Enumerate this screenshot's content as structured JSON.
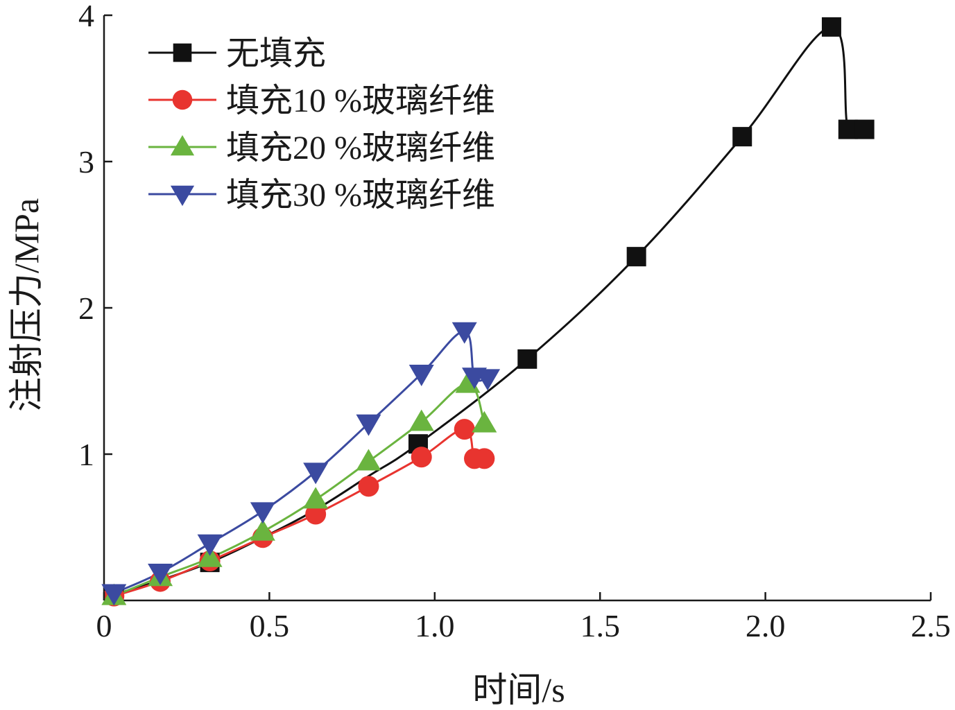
{
  "chart_data": {
    "type": "line",
    "title": "",
    "xlabel": "时间/s",
    "ylabel": "注射压力/MPa",
    "xlim": [
      0,
      2.5
    ],
    "ylim": [
      0,
      4
    ],
    "x_ticks": [
      {
        "value": 0,
        "label": "0"
      },
      {
        "value": 0.5,
        "label": "0.5"
      },
      {
        "value": 1.0,
        "label": "1.0"
      },
      {
        "value": 1.5,
        "label": "1.5"
      },
      {
        "value": 2.0,
        "label": "2.0"
      },
      {
        "value": 2.5,
        "label": "2.5"
      }
    ],
    "y_ticks": [
      {
        "value": 1,
        "label": "1"
      },
      {
        "value": 2,
        "label": "2"
      },
      {
        "value": 3,
        "label": "3"
      },
      {
        "value": 4,
        "label": "4"
      }
    ],
    "grid": false,
    "legend_position": "top-left",
    "series": [
      {
        "name": "无填充",
        "color": "#111111",
        "marker": "square",
        "x": [
          0.03,
          0.16,
          0.32,
          0.48,
          0.64,
          0.8,
          0.95,
          1.28,
          1.61,
          1.93,
          2.2,
          2.25,
          2.3
        ],
        "y": [
          0.04,
          0.13,
          0.26,
          0.43,
          0.62,
          0.85,
          1.07,
          1.65,
          2.35,
          3.17,
          3.92,
          3.22,
          3.22
        ],
        "visible_markers": [
          0,
          2,
          6,
          7,
          8,
          9,
          10,
          11,
          12
        ]
      },
      {
        "name": "填充10 %玻璃纤维",
        "color": "#e8342f",
        "marker": "circle",
        "x": [
          0.03,
          0.17,
          0.32,
          0.48,
          0.64,
          0.8,
          0.96,
          1.09,
          1.12,
          1.15
        ],
        "y": [
          0.03,
          0.13,
          0.27,
          0.43,
          0.59,
          0.78,
          0.98,
          1.17,
          0.97,
          0.97
        ]
      },
      {
        "name": "填充20 %玻璃纤维",
        "color": "#6ab43f",
        "marker": "triangle-up",
        "x": [
          0.03,
          0.17,
          0.32,
          0.48,
          0.64,
          0.8,
          0.96,
          1.1,
          1.15
        ],
        "y": [
          0.03,
          0.16,
          0.29,
          0.47,
          0.69,
          0.95,
          1.22,
          1.48,
          1.21
        ]
      },
      {
        "name": "填充30 %玻璃纤维",
        "color": "#3b4aa0",
        "marker": "triangle-down",
        "x": [
          0.03,
          0.17,
          0.32,
          0.48,
          0.64,
          0.8,
          0.96,
          1.09,
          1.12,
          1.16
        ],
        "y": [
          0.05,
          0.19,
          0.39,
          0.61,
          0.88,
          1.21,
          1.55,
          1.84,
          1.53,
          1.52
        ]
      }
    ]
  }
}
